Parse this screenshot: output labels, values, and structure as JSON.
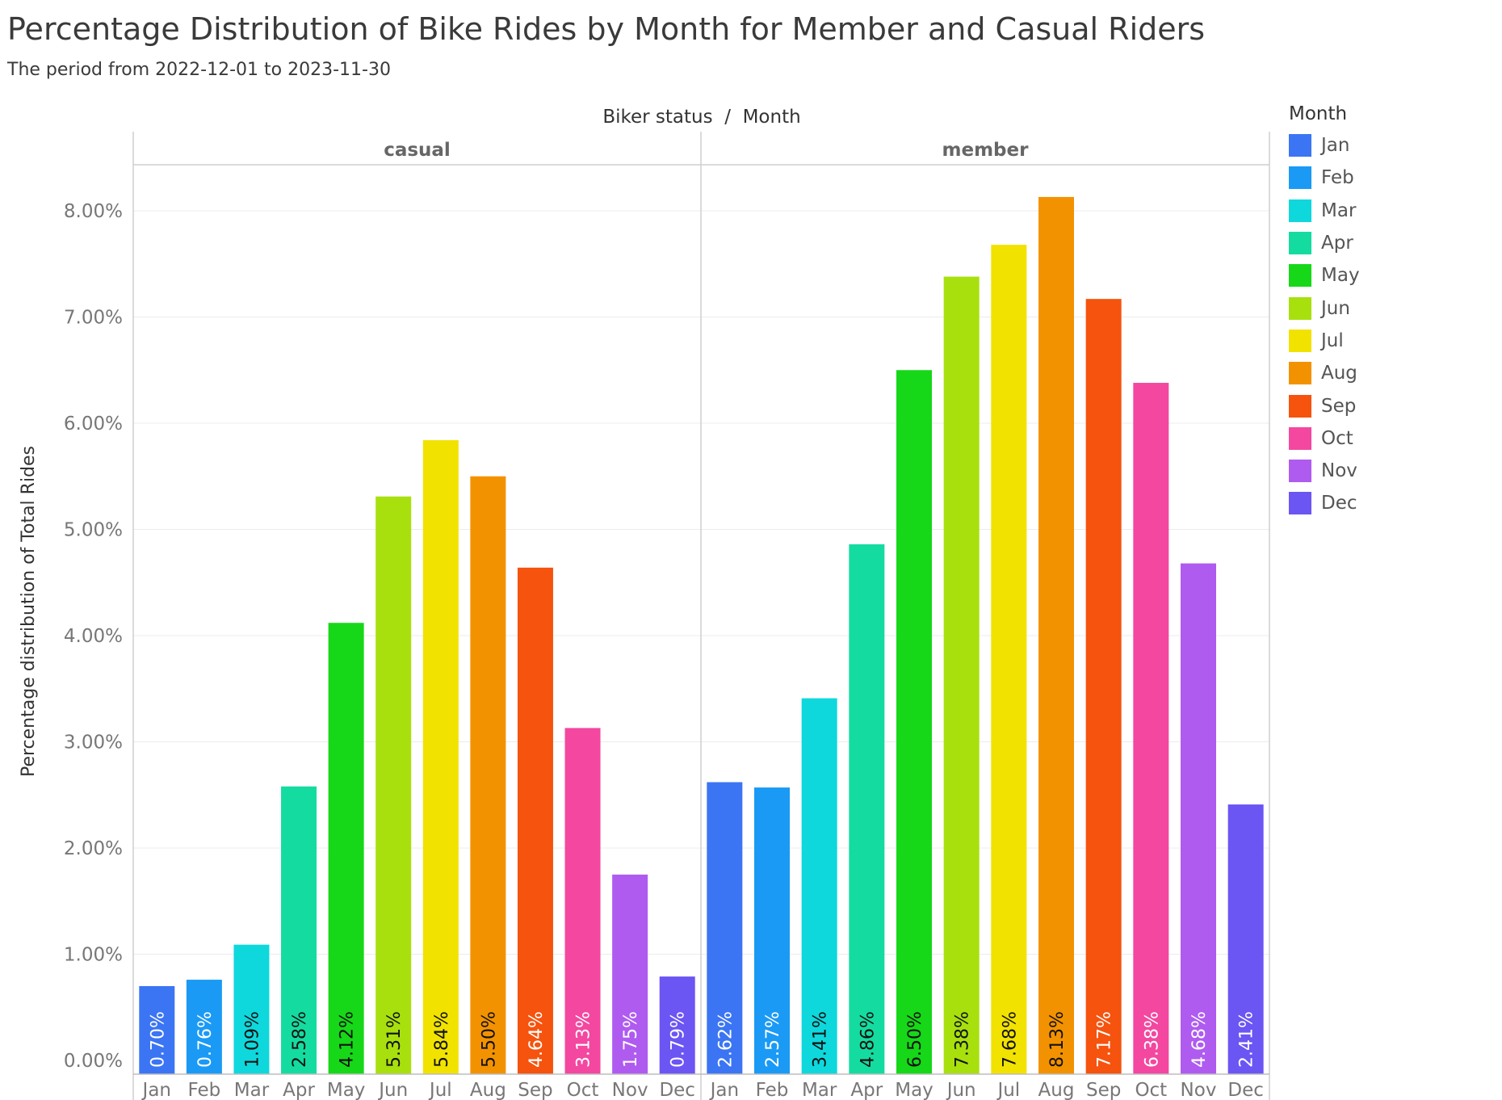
{
  "title": "Percentage Distribution of Bike Rides by Month for Member and Casual Riders",
  "subtitle": "The period from 2022-12-01 to 2023-11-30",
  "legend": {
    "title": "Month",
    "items": [
      {
        "label": "Jan",
        "color": "#3B75F3"
      },
      {
        "label": "Feb",
        "color": "#1A9AF5"
      },
      {
        "label": "Mar",
        "color": "#0ED8DC"
      },
      {
        "label": "Apr",
        "color": "#14DCA0"
      },
      {
        "label": "May",
        "color": "#16D818"
      },
      {
        "label": "Jun",
        "color": "#A8E00E"
      },
      {
        "label": "Jul",
        "color": "#F2E200"
      },
      {
        "label": "Aug",
        "color": "#F39200"
      },
      {
        "label": "Sep",
        "color": "#F5530E"
      },
      {
        "label": "Oct",
        "color": "#F347A0"
      },
      {
        "label": "Nov",
        "color": "#AF5BF0"
      },
      {
        "label": "Dec",
        "color": "#6B55F3"
      }
    ]
  },
  "chart_data": {
    "type": "bar",
    "title": "Percentage Distribution of Bike Rides by Month for Member and Casual Riders",
    "subtitle": "The period from 2022-12-01 to 2023-11-30",
    "column_header": "Biker status  /  Month",
    "ylabel": "Percentage distribution of Total Rides",
    "ylim": [
      0,
      8.8
    ],
    "yticks": [
      0,
      1,
      2,
      3,
      4,
      5,
      6,
      7,
      8
    ],
    "ytick_labels": [
      "0.00%",
      "1.00%",
      "2.00%",
      "3.00%",
      "4.00%",
      "5.00%",
      "6.00%",
      "7.00%",
      "8.00%"
    ],
    "categories": [
      "Jan",
      "Feb",
      "Mar",
      "Apr",
      "May",
      "Jun",
      "Jul",
      "Aug",
      "Sep",
      "Oct",
      "Nov",
      "Dec"
    ],
    "grid": true,
    "legend_position": "right",
    "panels": [
      {
        "name": "casual",
        "values": [
          0.7,
          0.76,
          1.09,
          2.58,
          4.12,
          5.31,
          5.84,
          5.5,
          4.64,
          3.13,
          1.75,
          0.79
        ],
        "labels": [
          "0.70%",
          "0.76%",
          "1.09%",
          "2.58%",
          "4.12%",
          "5.31%",
          "5.84%",
          "5.50%",
          "4.64%",
          "3.13%",
          "1.75%",
          "0.79%"
        ]
      },
      {
        "name": "member",
        "values": [
          2.62,
          2.57,
          3.41,
          4.86,
          6.5,
          7.38,
          7.68,
          8.13,
          7.17,
          6.38,
          4.68,
          2.41
        ],
        "labels": [
          "2.62%",
          "2.57%",
          "3.41%",
          "4.86%",
          "6.50%",
          "7.38%",
          "7.68%",
          "8.13%",
          "7.17%",
          "6.38%",
          "4.68%",
          "2.41%"
        ]
      }
    ]
  }
}
